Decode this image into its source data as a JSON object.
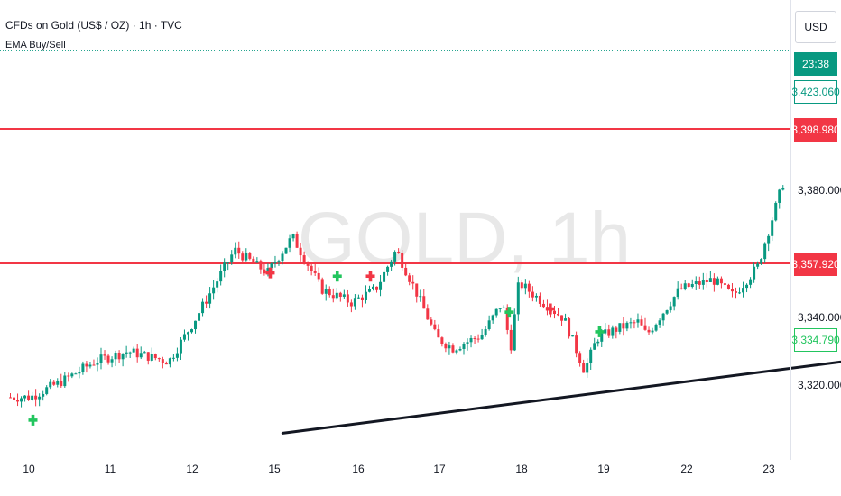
{
  "header": {
    "symbol_line": "CFDs on Gold (US$ / OZ) · 1h · TVC",
    "indicator": "EMA Buy/Sell"
  },
  "watermark": "GOLD, 1h",
  "price_scale": {
    "currency": "USD",
    "countdown": "23:38",
    "last_price": "3,423.060",
    "tag_upper": "3,398.980",
    "tag_lower": "3,357.920",
    "tag_trend": "3,334.790",
    "ticks": [
      "3,380.000",
      "3,340.000",
      "3,320.000"
    ]
  },
  "time_axis": [
    "10",
    "11",
    "12",
    "15",
    "16",
    "17",
    "18",
    "19",
    "22",
    "23"
  ],
  "colors": {
    "up": "#089981",
    "down": "#f23645",
    "resistance": "#f23645",
    "trendline": "#131722",
    "buy_signal": "#22c55e",
    "sell_signal": "#f23645",
    "countdown_bg": "#089981"
  },
  "chart_data": {
    "type": "candlestick",
    "symbol": "GOLD",
    "interval": "1h",
    "ylim": [
      3306,
      3445
    ],
    "horizontal_levels": [
      {
        "price": 3398.98,
        "color": "#f23645"
      },
      {
        "price": 3357.92,
        "color": "#f23645"
      }
    ],
    "close_path": [
      [
        0,
        3317
      ],
      [
        0.4,
        3322
      ],
      [
        0.8,
        3328
      ],
      [
        1.2,
        3331
      ],
      [
        1.7,
        3328
      ],
      [
        2.0,
        3340
      ],
      [
        2.5,
        3362
      ],
      [
        2.9,
        3355
      ],
      [
        3.2,
        3366
      ],
      [
        3.55,
        3350
      ],
      [
        3.9,
        3346
      ],
      [
        4.2,
        3350
      ],
      [
        4.45,
        3362
      ],
      [
        4.7,
        3349
      ],
      [
        4.95,
        3335
      ],
      [
        5.15,
        3332
      ],
      [
        5.5,
        3336
      ],
      [
        5.75,
        3346
      ],
      [
        5.85,
        3332
      ],
      [
        5.95,
        3352
      ],
      [
        6.3,
        3345
      ],
      [
        6.5,
        3341
      ],
      [
        6.75,
        3325
      ],
      [
        6.9,
        3335
      ],
      [
        7.15,
        3338
      ],
      [
        7.4,
        3340
      ],
      [
        7.5,
        3336
      ],
      [
        7.9,
        3350
      ],
      [
        8.3,
        3353
      ],
      [
        8.55,
        3348
      ],
      [
        8.85,
        3357
      ],
      [
        9.15,
        3382
      ],
      [
        9.55,
        3402
      ],
      [
        10.0,
        3387
      ],
      [
        10.4,
        3387
      ],
      [
        10.65,
        3408
      ],
      [
        10.9,
        3425
      ],
      [
        11.15,
        3427
      ],
      [
        11.3,
        3420
      ]
    ],
    "signals": [
      {
        "type": "buy",
        "x": 0.05,
        "price": 3310
      },
      {
        "type": "sell",
        "x": 2.95,
        "price": 3355
      },
      {
        "type": "buy",
        "x": 3.75,
        "price": 3354
      },
      {
        "type": "sell",
        "x": 4.15,
        "price": 3354
      },
      {
        "type": "buy",
        "x": 5.85,
        "price": 3343
      },
      {
        "type": "sell",
        "x": 6.35,
        "price": 3344
      },
      {
        "type": "buy",
        "x": 6.95,
        "price": 3337
      }
    ],
    "trendlines": [
      {
        "from": [
          3.1,
          3306
        ],
        "to": [
          11.5,
          3333
        ]
      },
      {
        "from": [
          10.05,
          3386
        ],
        "to": [
          10.65,
          3381
        ]
      }
    ]
  }
}
